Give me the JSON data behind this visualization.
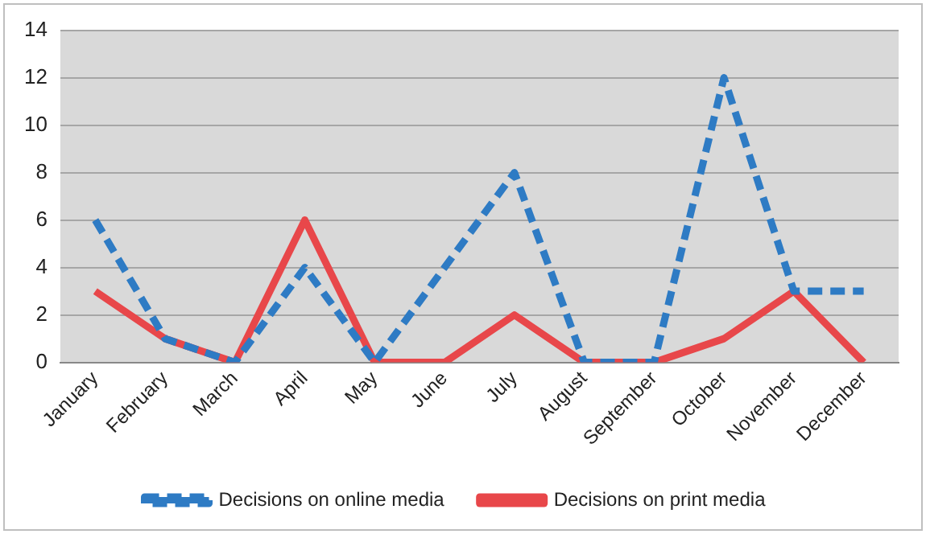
{
  "chart_data": {
    "type": "line",
    "categories": [
      "January",
      "February",
      "March",
      "April",
      "May",
      "June",
      "July",
      "August",
      "September",
      "October",
      "November",
      "December"
    ],
    "series": [
      {
        "name": "Decisions on online media",
        "color": "#2e7bc4",
        "values": [
          6,
          1,
          0,
          4,
          0,
          4,
          8,
          0,
          0,
          12,
          3,
          3
        ],
        "line_style": "dashed"
      },
      {
        "name": "Decisions on print media",
        "color": "#e8474a",
        "values": [
          3,
          1,
          0,
          6,
          0,
          0,
          2,
          0,
          0,
          1,
          3,
          0
        ],
        "line_style": "solid"
      }
    ],
    "ylim": [
      0,
      14
    ],
    "yticks": [
      0,
      2,
      4,
      6,
      8,
      10,
      12,
      14
    ],
    "grid": "y",
    "legend": "bottom",
    "marker": "none"
  }
}
